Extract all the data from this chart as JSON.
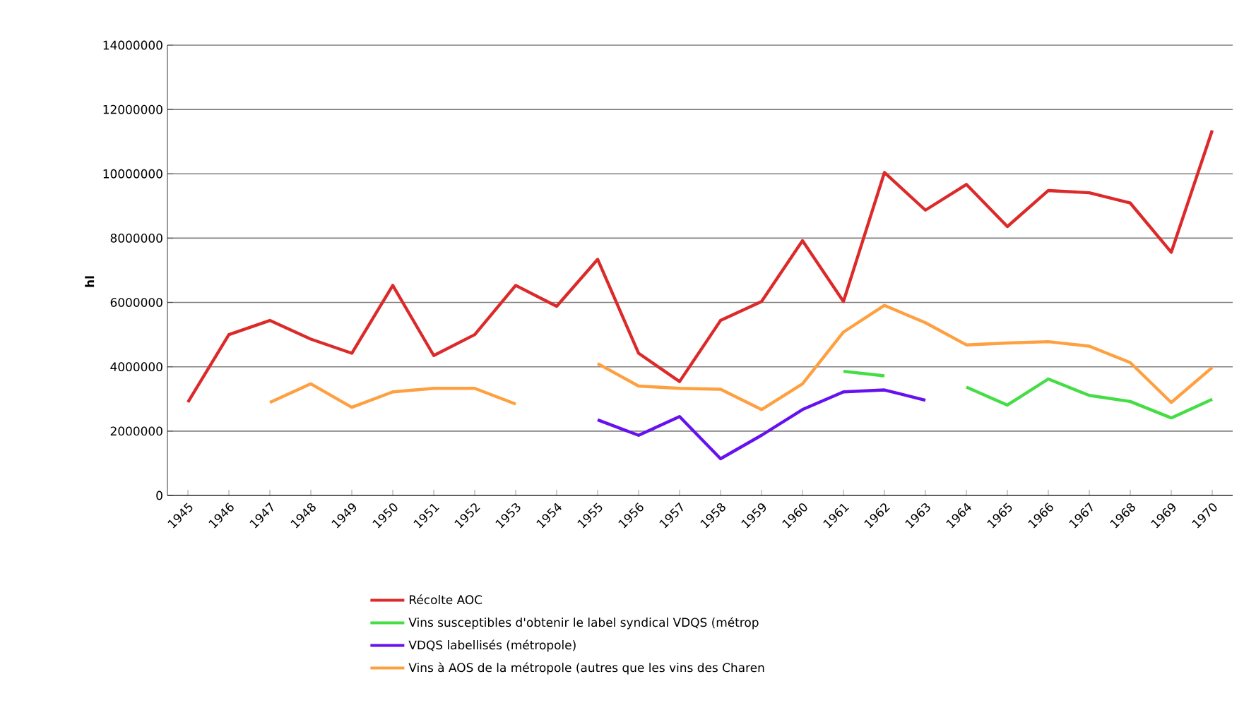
{
  "chart_data": {
    "type": "line",
    "ylabel": "hl",
    "categories": [
      "1945",
      "1946",
      "1947",
      "1948",
      "1949",
      "1950",
      "1951",
      "1952",
      "1953",
      "1954",
      "1955",
      "1956",
      "1957",
      "1958",
      "1959",
      "1960",
      "1961",
      "1962",
      "1963",
      "1964",
      "1965",
      "1966",
      "1967",
      "1968",
      "1969",
      "1970"
    ],
    "series": [
      {
        "name": "Récolte AOC",
        "color": "#dc2a2a",
        "values": [
          2900000,
          5000000,
          5440000,
          4860000,
          4420000,
          6530000,
          4350000,
          5000000,
          6530000,
          5880000,
          7340000,
          4420000,
          3540000,
          5440000,
          6030000,
          7920000,
          6030000,
          10040000,
          8870000,
          9670000,
          8360000,
          9480000,
          9410000,
          9090000,
          7560000,
          11350000
        ]
      },
      {
        "name": "Vins susceptibles d'obtenir le label syndical VDQS (métrop",
        "color": "#44dd44",
        "values": [
          null,
          null,
          null,
          null,
          null,
          null,
          null,
          null,
          null,
          null,
          null,
          null,
          null,
          null,
          null,
          null,
          3860000,
          3720000,
          null,
          3370000,
          2810000,
          3620000,
          3110000,
          2920000,
          2410000,
          2990000
        ]
      },
      {
        "name": "VDQS labellisés (métropole)",
        "color": "#6611ee",
        "values": [
          null,
          null,
          null,
          null,
          null,
          null,
          null,
          null,
          null,
          null,
          2350000,
          1870000,
          2450000,
          1140000,
          1870000,
          2670000,
          3220000,
          3280000,
          2960000,
          null,
          null,
          null,
          null,
          null,
          null,
          null
        ]
      },
      {
        "name": "Vins à AOS de la métropole (autres que les vins des Charen",
        "color": "#ffa040",
        "values": [
          null,
          null,
          2890000,
          3470000,
          2740000,
          3220000,
          3330000,
          3330000,
          2840000,
          null,
          4100000,
          3400000,
          3330000,
          3300000,
          2670000,
          3470000,
          5080000,
          5910000,
          5370000,
          4680000,
          4740000,
          4780000,
          4640000,
          4130000,
          2890000,
          3980000
        ]
      }
    ],
    "ylim": [
      0,
      14000000
    ],
    "yticks": [
      0,
      2000000,
      4000000,
      6000000,
      8000000,
      10000000,
      12000000,
      14000000
    ],
    "grid": "y",
    "legend": "bottom",
    "marker": "none",
    "line_style": "solid"
  }
}
